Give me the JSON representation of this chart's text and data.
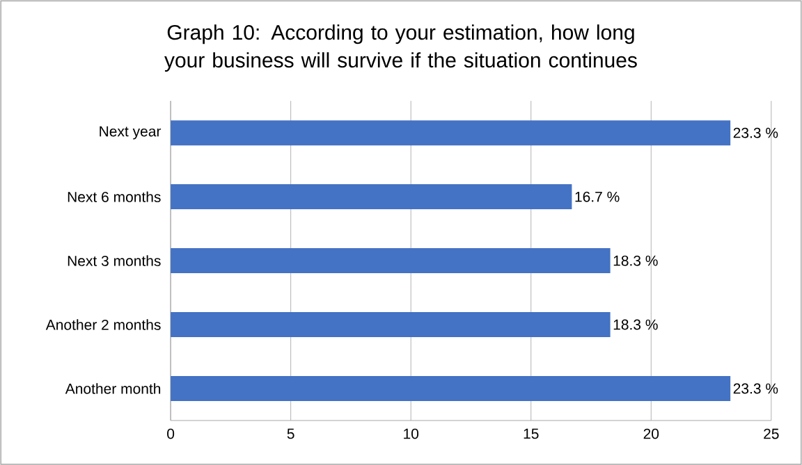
{
  "chart_data": {
    "type": "bar",
    "orientation": "horizontal",
    "title": "Graph 10: According to your estimation, how long your business will survive if the situation continues",
    "categories": [
      "Next year",
      "Next 6 months",
      "Next 3 months",
      "Another 2 months",
      "Another month"
    ],
    "values": [
      23.3,
      16.7,
      18.3,
      18.3,
      23.3
    ],
    "value_labels": [
      "23.3 %",
      "16.7 %",
      "18.3 %",
      "18.3 %",
      "23.3 %"
    ],
    "color": "#4472c4",
    "xlim": [
      0,
      25
    ],
    "xticks": [
      0,
      5,
      10,
      15,
      20,
      25
    ],
    "grid": "x"
  }
}
